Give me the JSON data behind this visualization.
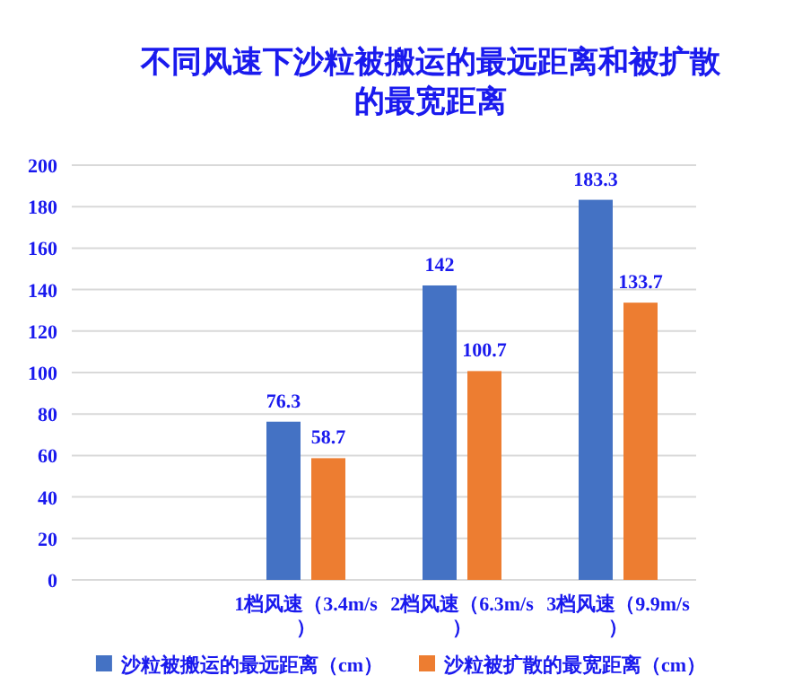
{
  "chart_data": {
    "type": "bar",
    "title": "不同风速下沙粒被搬运的最远距离和被扩散的最宽距离",
    "categories": [
      null,
      "1档风速（3.4m/s）",
      "2档风速（6.3m/s）",
      "3档风速（9.9m/s）"
    ],
    "series": [
      {
        "name": "沙粒被搬运的最远距离（cm）",
        "color": "#4472c4",
        "values": [
          null,
          76.3,
          142,
          183.3
        ]
      },
      {
        "name": "沙粒被扩散的最宽距离（cm）",
        "color": "#ed7d31",
        "values": [
          null,
          58.7,
          100.7,
          133.7
        ]
      }
    ],
    "ylim": [
      0,
      200
    ],
    "yticks": [
      0,
      20,
      40,
      60,
      80,
      100,
      120,
      140,
      160,
      180,
      200
    ],
    "grid": "y",
    "legend": "bottom",
    "data_labels": true
  }
}
